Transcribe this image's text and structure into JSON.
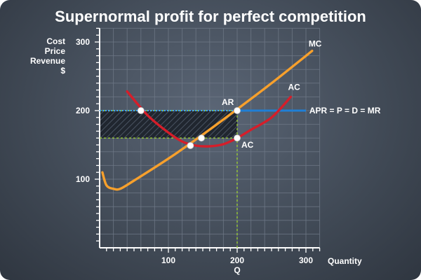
{
  "chart_data": {
    "type": "line",
    "title": "Supernormal profit for perfect competition",
    "ylabel_lines": [
      "Cost",
      "Price",
      "Revenue",
      "$"
    ],
    "xlabel": "Q",
    "xaxis_name": "Quantity",
    "xlim": [
      0,
      320
    ],
    "ylim": [
      0,
      320
    ],
    "xticks": [
      100,
      200,
      300
    ],
    "yticks": [
      100,
      200,
      300
    ],
    "grid": true,
    "colors": {
      "mc": "#f7a02c",
      "ac": "#d51e2a",
      "apr": "#1f7fd6",
      "guide": "#9acd32",
      "profit_area": "#1f2530",
      "point": "#ffffff"
    },
    "series": [
      {
        "name": "MC",
        "values": [
          [
            4,
            110
          ],
          [
            10,
            91
          ],
          [
            20,
            86
          ],
          [
            30,
            86
          ],
          [
            50,
            98
          ],
          [
            100,
            130
          ],
          [
            150,
            165
          ],
          [
            200,
            202
          ],
          [
            250,
            240
          ],
          [
            309,
            287
          ]
        ]
      },
      {
        "name": "AC",
        "values": [
          [
            40,
            228
          ],
          [
            70,
            193
          ],
          [
            100,
            168
          ],
          [
            120,
            155
          ],
          [
            140,
            149
          ],
          [
            160,
            148
          ],
          [
            180,
            151
          ],
          [
            200,
            160
          ],
          [
            220,
            172
          ],
          [
            250,
            190
          ],
          [
            278,
            220
          ]
        ]
      },
      {
        "name": "APR = P = D = MR",
        "values": [
          [
            0,
            200
          ],
          [
            300,
            200
          ]
        ]
      }
    ],
    "annotations": [
      {
        "label": "AR",
        "x": 200,
        "y": 200
      },
      {
        "label": "AC",
        "x": 200,
        "y": 160
      }
    ],
    "points": [
      {
        "x": 60,
        "y": 200
      },
      {
        "x": 200,
        "y": 200
      },
      {
        "x": 200,
        "y": 160
      },
      {
        "x": 148,
        "y": 160
      },
      {
        "x": 132,
        "y": 149
      }
    ],
    "profit_area": {
      "x": [
        0,
        200
      ],
      "y": [
        160,
        200
      ]
    }
  }
}
